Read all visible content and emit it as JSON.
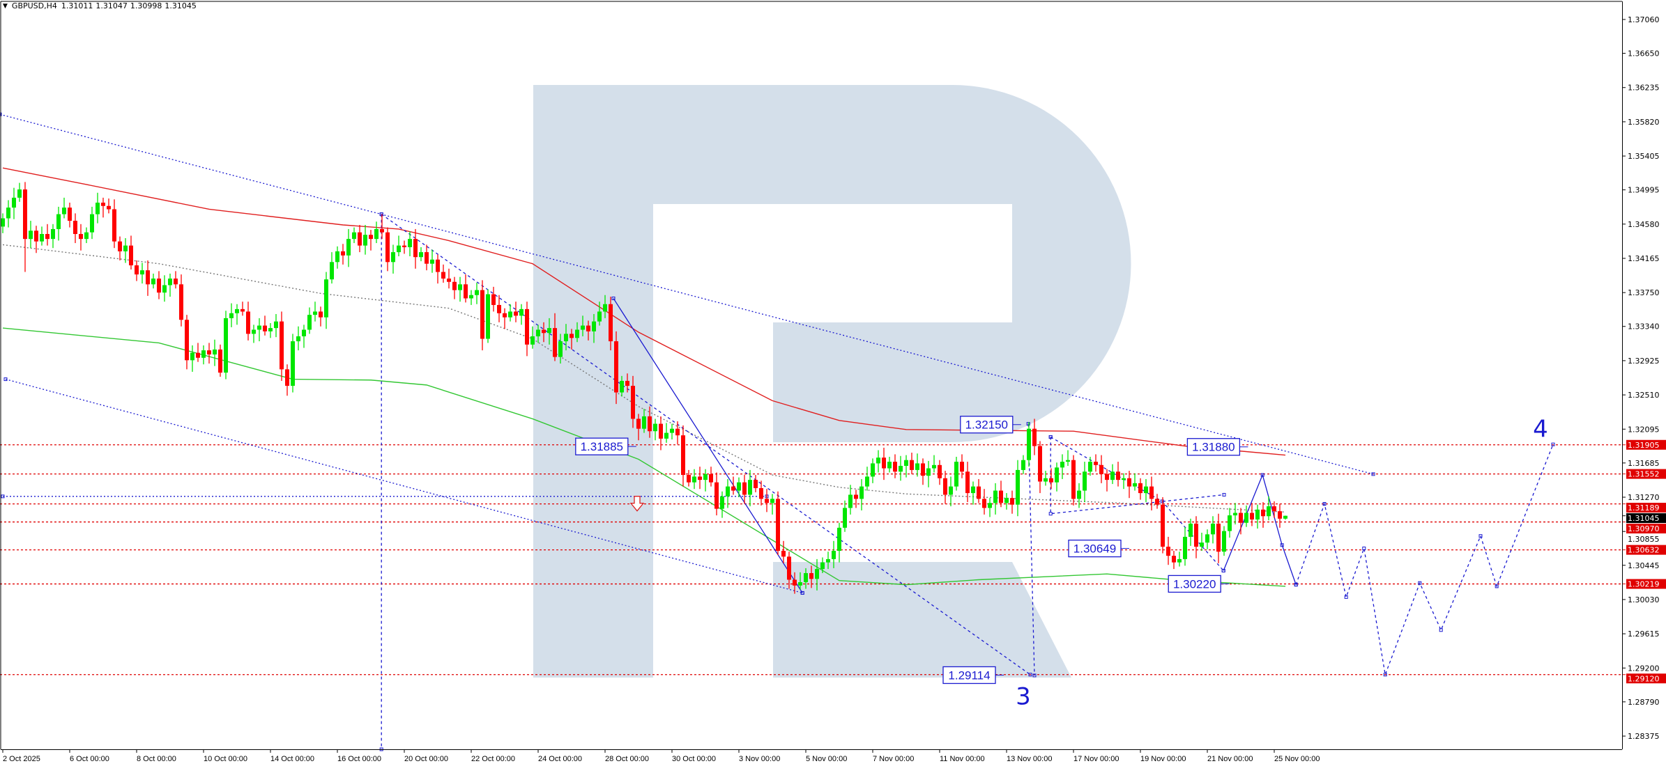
{
  "header": {
    "menu_icon": "triangle-down-icon",
    "symbol": "GBPUSD,H4",
    "open": "1.31011",
    "high": "1.31047",
    "low": "1.30998",
    "close": "1.31045"
  },
  "colors": {
    "bull": "#00e600",
    "bear": "#ff0000",
    "ma_slow": "#e01e1e",
    "ma_mid": "#777777",
    "ma_fast": "#33c733",
    "annotation": "#1a1ad0",
    "level": "#e00000",
    "current_price_bg": "#000000",
    "watermark": "#d4dfea"
  },
  "chart_data": {
    "type": "candlestick",
    "symbol": "GBPUSD",
    "timeframe": "H4",
    "ylim": [
      1.28215,
      1.37296
    ],
    "grid": false,
    "y_ticks": [
      "1.37060",
      "1.36650",
      "1.36235",
      "1.35820",
      "1.35405",
      "1.34995",
      "1.34580",
      "1.34165",
      "1.33750",
      "1.33340",
      "1.32925",
      "1.32510",
      "1.32095",
      "1.31685",
      "1.31270",
      "1.30855",
      "1.30445",
      "1.30030",
      "1.29615",
      "1.29200",
      "1.28790",
      "1.28375"
    ],
    "x_ticks": [
      {
        "bar": 0,
        "label": "2 Oct 2025"
      },
      {
        "bar": 12,
        "label": "6 Oct 00:00"
      },
      {
        "bar": 24,
        "label": "8 Oct 00:00"
      },
      {
        "bar": 36,
        "label": "10 Oct 00:00"
      },
      {
        "bar": 48,
        "label": "14 Oct 00:00"
      },
      {
        "bar": 60,
        "label": "16 Oct 00:00"
      },
      {
        "bar": 72,
        "label": "20 Oct 00:00"
      },
      {
        "bar": 84,
        "label": "22 Oct 00:00"
      },
      {
        "bar": 96,
        "label": "24 Oct 00:00"
      },
      {
        "bar": 108,
        "label": "28 Oct 00:00"
      },
      {
        "bar": 120,
        "label": "30 Oct 00:00"
      },
      {
        "bar": 132,
        "label": "3 Nov 00:00"
      },
      {
        "bar": 144,
        "label": "5 Nov 00:00"
      },
      {
        "bar": 156,
        "label": "7 Nov 00:00"
      },
      {
        "bar": 168,
        "label": "11 Nov 00:00"
      },
      {
        "bar": 180,
        "label": "13 Nov 00:00"
      },
      {
        "bar": 192,
        "label": "17 Nov 00:00"
      },
      {
        "bar": 204,
        "label": "19 Nov 00:00"
      },
      {
        "bar": 216,
        "label": "21 Nov 00:00"
      },
      {
        "bar": 228,
        "label": "25 Nov 00:00"
      }
    ],
    "candles": {
      "first_open": 1.3455,
      "close": [
        1.3465,
        1.3478,
        1.349,
        1.35,
        1.344,
        1.345,
        1.3437,
        1.3446,
        1.344,
        1.3452,
        1.347,
        1.3478,
        1.3462,
        1.3446,
        1.344,
        1.3448,
        1.347,
        1.3484,
        1.348,
        1.3476,
        1.3437,
        1.3425,
        1.3432,
        1.3408,
        1.3397,
        1.3402,
        1.3385,
        1.3392,
        1.3375,
        1.3384,
        1.3392,
        1.3385,
        1.3342,
        1.3293,
        1.3302,
        1.3296,
        1.3305,
        1.33,
        1.3306,
        1.3278,
        1.3344,
        1.335,
        1.3355,
        1.3352,
        1.3325,
        1.333,
        1.3335,
        1.3328,
        1.3332,
        1.334,
        1.3282,
        1.3262,
        1.3316,
        1.3322,
        1.333,
        1.3348,
        1.3352,
        1.3345,
        1.3391,
        1.3412,
        1.3425,
        1.342,
        1.344,
        1.3448,
        1.3432,
        1.3445,
        1.344,
        1.3452,
        1.3448,
        1.3412,
        1.3424,
        1.3432,
        1.343,
        1.344,
        1.3418,
        1.3424,
        1.341,
        1.3415,
        1.34,
        1.3392,
        1.3388,
        1.3378,
        1.3385,
        1.3368,
        1.3372,
        1.3378,
        1.3319,
        1.3373,
        1.336,
        1.335,
        1.3345,
        1.3352,
        1.3347,
        1.3355,
        1.3312,
        1.3322,
        1.333,
        1.3326,
        1.3332,
        1.3297,
        1.3316,
        1.3325,
        1.332,
        1.333,
        1.3335,
        1.3328,
        1.334,
        1.3352,
        1.3361,
        1.3316,
        1.3254,
        1.3268,
        1.3262,
        1.3222,
        1.321,
        1.3225,
        1.3207,
        1.3216,
        1.3198,
        1.3205,
        1.321,
        1.3202,
        1.3154,
        1.3145,
        1.3152,
        1.3148,
        1.3155,
        1.3145,
        1.3113,
        1.3128,
        1.314,
        1.3135,
        1.3145,
        1.313,
        1.3148,
        1.3138,
        1.3125,
        1.312,
        1.3125,
        1.3062,
        1.3055,
        1.3027,
        1.302,
        1.3024,
        1.3035,
        1.3028,
        1.304,
        1.3048,
        1.3052,
        1.3062,
        1.309,
        1.3114,
        1.313,
        1.3125,
        1.314,
        1.3152,
        1.3168,
        1.3175,
        1.3162,
        1.317,
        1.3158,
        1.3165,
        1.3172,
        1.316,
        1.3168,
        1.3153,
        1.3162,
        1.3166,
        1.315,
        1.313,
        1.314,
        1.317,
        1.3158,
        1.3132,
        1.314,
        1.3125,
        1.3114,
        1.312,
        1.3135,
        1.312,
        1.3126,
        1.3118,
        1.316,
        1.3172,
        1.321,
        1.3189,
        1.3146,
        1.315,
        1.3145,
        1.3163,
        1.317,
        1.3172,
        1.3125,
        1.3135,
        1.3158,
        1.317,
        1.3166,
        1.3155,
        1.3148,
        1.3158,
        1.3148,
        1.315,
        1.314,
        1.3144,
        1.3132,
        1.314,
        1.3125,
        1.3118,
        1.3067,
        1.3056,
        1.3048,
        1.3052,
        1.3079,
        1.3095,
        1.3067,
        1.3072,
        1.3082,
        1.3095,
        1.3061,
        1.3086,
        1.3105,
        1.3108,
        1.3096,
        1.3108,
        1.31,
        1.3112,
        1.3104,
        1.3116,
        1.311,
        1.3101,
        1.31045
      ],
      "high_overrides": {
        "3": 1.3508,
        "68": 1.347,
        "99": 1.335,
        "108": 1.3372,
        "184": 1.3218,
        "230": 1.31047
      },
      "low_overrides": {
        "4": 1.34,
        "51": 1.325,
        "110": 1.324,
        "142": 1.301,
        "210": 1.304,
        "230": 1.30998
      }
    },
    "moving_averages": [
      {
        "style": "solid",
        "color_key": "ma_slow",
        "points": [
          [
            0,
            1.3526
          ],
          [
            15,
            1.3506
          ],
          [
            37,
            1.3476
          ],
          [
            61,
            1.3457
          ],
          [
            71,
            1.3452
          ],
          [
            80,
            1.3438
          ],
          [
            95,
            1.341
          ],
          [
            114,
            1.3327
          ],
          [
            138,
            1.3244
          ],
          [
            150,
            1.322
          ],
          [
            162,
            1.3209
          ],
          [
            192,
            1.3207
          ],
          [
            212,
            1.3189
          ],
          [
            230,
            1.3178
          ]
        ]
      },
      {
        "style": "dotted",
        "color_key": "ma_mid",
        "points": [
          [
            0,
            1.3433
          ],
          [
            28,
            1.341
          ],
          [
            57,
            1.3374
          ],
          [
            80,
            1.3356
          ],
          [
            95,
            1.3319
          ],
          [
            114,
            1.3237
          ],
          [
            138,
            1.3154
          ],
          [
            150,
            1.3139
          ],
          [
            162,
            1.3131
          ],
          [
            200,
            1.312
          ],
          [
            230,
            1.3109
          ]
        ]
      },
      {
        "style": "solid",
        "color_key": "ma_fast",
        "points": [
          [
            0,
            1.3332
          ],
          [
            28,
            1.3314
          ],
          [
            52,
            1.327
          ],
          [
            66,
            1.3269
          ],
          [
            76,
            1.3263
          ],
          [
            95,
            1.3222
          ],
          [
            114,
            1.3173
          ],
          [
            138,
            1.3075
          ],
          [
            150,
            1.3026
          ],
          [
            162,
            1.3021
          ],
          [
            175,
            1.3027
          ],
          [
            198,
            1.3034
          ],
          [
            210,
            1.3027
          ],
          [
            230,
            1.3019
          ]
        ]
      }
    ],
    "levels": [
      1.31905,
      1.31552,
      1.31189,
      1.3097,
      1.30632,
      1.30219,
      1.2912
    ],
    "level_labels": [
      "1.31905",
      "1.31552",
      "1.31189",
      "1.30970",
      "1.30632",
      "1.30219",
      "1.29120"
    ],
    "current_price": 1.31045,
    "current_price_label": "1.31045",
    "trend_lines": [
      {
        "style": "dotted",
        "points": [
          [
            -0.5,
            1.3591
          ],
          [
            245.75,
            1.3155
          ]
        ]
      },
      {
        "style": "dotted",
        "points": [
          [
            0.5,
            1.327
          ],
          [
            143.4,
            1.3011
          ]
        ]
      },
      {
        "style": "dotted",
        "points": [
          [
            0,
            1.3128
          ],
          [
            137,
            1.3128
          ]
        ]
      },
      {
        "style": "dashed",
        "points": [
          [
            67.9,
            1.347
          ],
          [
            67.9,
            1.28215
          ]
        ]
      },
      {
        "style": "dashed",
        "points": [
          [
            67.9,
            1.347
          ],
          [
            184.25,
            1.2912
          ]
        ]
      },
      {
        "style": "solid",
        "points": [
          [
            109.5,
            1.3368
          ],
          [
            143.4,
            1.3011
          ]
        ]
      },
      {
        "style": "dashed",
        "points": [
          [
            183.9,
            1.3216
          ],
          [
            185,
            1.2911
          ]
        ]
      },
      {
        "style": "dashed",
        "points": [
          [
            187.9,
            1.32
          ],
          [
            187.9,
            1.3107
          ],
          [
            219,
            1.313
          ]
        ]
      },
      {
        "style": "dashed",
        "points": [
          [
            187.9,
            1.32
          ],
          [
            207.9,
            1.3122
          ],
          [
            218.9,
            1.3038
          ]
        ]
      },
      {
        "style": "solid",
        "points": [
          [
            218.9,
            1.3038
          ],
          [
            225.9,
            1.3154
          ],
          [
            229.4,
            1.3069
          ],
          [
            231.9,
            1.3021
          ]
        ]
      },
      {
        "style": "dashed",
        "points": [
          [
            231.9,
            1.3021
          ],
          [
            237,
            1.3119
          ],
          [
            240.9,
            1.3006
          ],
          [
            244.1,
            1.3065
          ],
          [
            247.9,
            1.2912
          ],
          [
            254.1,
            1.3023
          ],
          [
            257.9,
            1.2966
          ],
          [
            265,
            1.308
          ],
          [
            267.9,
            1.3019
          ],
          [
            278,
            1.3191
          ]
        ]
      }
    ],
    "price_labels": [
      {
        "text": "1.31885",
        "bar": 113.6,
        "price": 1.31885
      },
      {
        "text": "1.32150",
        "bar": 182.6,
        "price": 1.3215
      },
      {
        "text": "1.31880",
        "bar": 223.3,
        "price": 1.3188
      },
      {
        "text": "1.30649",
        "bar": 202,
        "price": 1.30649
      },
      {
        "text": "1.30220",
        "bar": 219.9,
        "price": 1.3022
      },
      {
        "text": "1.29114",
        "bar": 179.5,
        "price": 1.29114
      }
    ],
    "wave_labels": [
      {
        "text": "3",
        "bar": 183,
        "price": 1.2886
      },
      {
        "text": "4",
        "bar": 275.75,
        "price": 1.321
      }
    ],
    "arrow": {
      "icon": "arrow-down-icon",
      "bar": 113.75,
      "price": 1.3118
    }
  }
}
